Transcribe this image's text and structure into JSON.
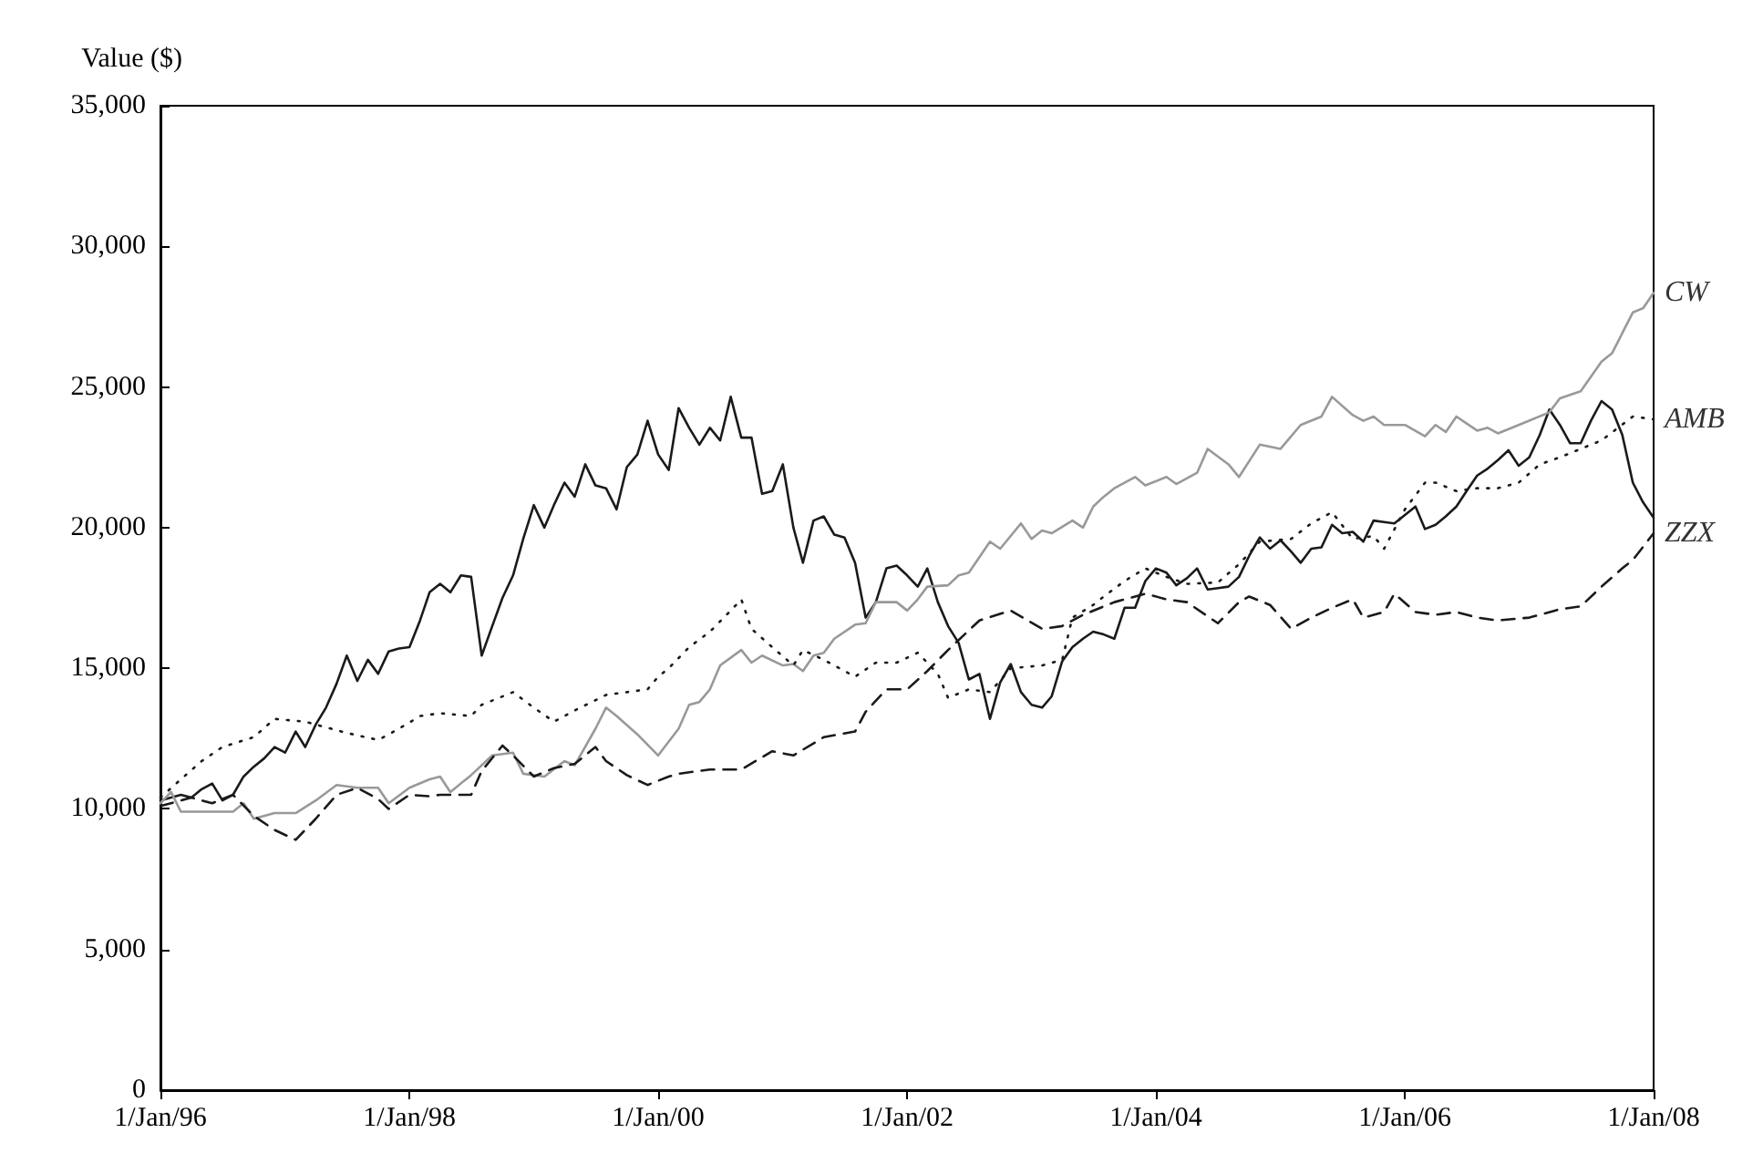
{
  "chart_data": {
    "type": "line",
    "ylabel": "Value ($)",
    "x": [
      "1996-01",
      "1996-02",
      "1996-03",
      "1996-04",
      "1996-05",
      "1996-06",
      "1996-07",
      "1996-08",
      "1996-09",
      "1996-10",
      "1996-11",
      "1996-12",
      "1997-01",
      "1997-02",
      "1997-03",
      "1997-04",
      "1997-05",
      "1997-06",
      "1997-07",
      "1997-08",
      "1997-09",
      "1997-10",
      "1997-11",
      "1997-12",
      "1998-01",
      "1998-02",
      "1998-03",
      "1998-04",
      "1998-05",
      "1998-06",
      "1998-07",
      "1998-08",
      "1998-09",
      "1998-10",
      "1998-11",
      "1998-12",
      "1999-01",
      "1999-02",
      "1999-03",
      "1999-04",
      "1999-05",
      "1999-06",
      "1999-07",
      "1999-08",
      "1999-09",
      "1999-10",
      "1999-11",
      "1999-12",
      "2000-01",
      "2000-02",
      "2000-03",
      "2000-04",
      "2000-05",
      "2000-06",
      "2000-07",
      "2000-08",
      "2000-09",
      "2000-10",
      "2000-11",
      "2000-12",
      "2001-01",
      "2001-02",
      "2001-03",
      "2001-04",
      "2001-05",
      "2001-06",
      "2001-07",
      "2001-08",
      "2001-09",
      "2001-10",
      "2001-11",
      "2001-12",
      "2002-01",
      "2002-02",
      "2002-03",
      "2002-04",
      "2002-05",
      "2002-06",
      "2002-07",
      "2002-08",
      "2002-09",
      "2002-10",
      "2002-11",
      "2002-12",
      "2003-01",
      "2003-02",
      "2003-03",
      "2003-04",
      "2003-05",
      "2003-06",
      "2003-07",
      "2003-08",
      "2003-09",
      "2003-10",
      "2003-11",
      "2003-12",
      "2004-01",
      "2004-02",
      "2004-03",
      "2004-04",
      "2004-05",
      "2004-06",
      "2004-07",
      "2004-08",
      "2004-09",
      "2004-10",
      "2004-11",
      "2004-12",
      "2005-01",
      "2005-02",
      "2005-03",
      "2005-04",
      "2005-05",
      "2005-06",
      "2005-07",
      "2005-08",
      "2005-09",
      "2005-10",
      "2005-11",
      "2005-12",
      "2006-01",
      "2006-02",
      "2006-03",
      "2006-04",
      "2006-05",
      "2006-06",
      "2006-07",
      "2006-08",
      "2006-09",
      "2006-10",
      "2006-11",
      "2006-12",
      "2007-01",
      "2007-02",
      "2007-03",
      "2007-04",
      "2007-05",
      "2007-06",
      "2007-07",
      "2007-08",
      "2007-09",
      "2007-10",
      "2007-11",
      "2007-12",
      "2008-01"
    ],
    "series": [
      {
        "color": "#1a1a1a",
        "line_style": "solid",
        "values": [
          10300,
          10400,
          10500,
          10400,
          10700,
          10900,
          10300,
          10500,
          11150,
          11500,
          11800,
          12200,
          12000,
          12750,
          12200,
          13000,
          13600,
          14450,
          15450,
          14550,
          15300,
          14800,
          15600,
          15700,
          15750,
          16700,
          17700,
          18000,
          17700,
          18300,
          18250,
          15450,
          16500,
          17500,
          18300,
          19600,
          20800,
          20000,
          20800,
          21600,
          21100,
          22250,
          21500,
          21400,
          20650,
          22150,
          22600,
          23800,
          22600,
          22050,
          24250,
          23550,
          22950,
          23550,
          23100,
          24650,
          23200,
          23200,
          21200,
          21300,
          22250,
          20000,
          18750,
          20250,
          20400,
          19750,
          19650,
          18750,
          16800,
          17350,
          18550,
          18650,
          18300,
          17900,
          18550,
          17350,
          16500,
          15900,
          14600,
          14800,
          13200,
          14500,
          15150,
          14150,
          13700,
          13600,
          14000,
          15250,
          15750,
          16050,
          16300,
          16200,
          16050,
          17150,
          17150,
          18100,
          18550,
          18400,
          17950,
          18200,
          18550,
          17800,
          17850,
          17900,
          18250,
          19000,
          19650,
          19250,
          19550,
          19150,
          18750,
          19250,
          19300,
          20100,
          19800,
          19850,
          19500,
          20250,
          20200,
          20150,
          20450,
          20750,
          19950,
          20100,
          20400,
          20750,
          21300,
          21850,
          22100,
          22400,
          22750,
          22200,
          22500,
          23300,
          24200,
          23650,
          23000,
          23000,
          23800,
          24500,
          24200,
          23300,
          21600,
          20900,
          20350
        ]
      },
      {
        "name": "CW",
        "color": "#999999",
        "line_style": "solid",
        "x": [
          "1996-01",
          "1996-02",
          "1996-03",
          "1996-08",
          "1996-09",
          "1996-10",
          "1996-12",
          "1997-02",
          "1997-04",
          "1997-06",
          "1997-08",
          "1997-10",
          "1997-11",
          "1998-01",
          "1998-03",
          "1998-04",
          "1998-05",
          "1998-07",
          "1998-09",
          "1998-11",
          "1998-12",
          "1999-02",
          "1999-04",
          "1999-05",
          "1999-07",
          "1999-08",
          "1999-09",
          "1999-11",
          "2000-01",
          "2000-03",
          "2000-04",
          "2000-05",
          "2000-06",
          "2000-07",
          "2000-09",
          "2000-10",
          "2000-11",
          "2001-01",
          "2001-02",
          "2001-03",
          "2001-04",
          "2001-05",
          "2001-06",
          "2001-08",
          "2001-09",
          "2001-10",
          "2001-12",
          "2002-01",
          "2002-02",
          "2002-03",
          "2002-05",
          "2002-06",
          "2002-07",
          "2002-09",
          "2002-10",
          "2002-12",
          "2003-01",
          "2003-02",
          "2003-03",
          "2003-05",
          "2003-06",
          "2003-07",
          "2003-08",
          "2003-09",
          "2003-11",
          "2003-12",
          "2004-02",
          "2004-03",
          "2004-05",
          "2004-06",
          "2004-08",
          "2004-09",
          "2004-11",
          "2005-01",
          "2005-03",
          "2005-05",
          "2005-06",
          "2005-08",
          "2005-09",
          "2005-10",
          "2005-11",
          "2006-01",
          "2006-03",
          "2006-04",
          "2006-05",
          "2006-06",
          "2006-08",
          "2006-09",
          "2006-10",
          "2006-12",
          "2007-03",
          "2007-04",
          "2007-06",
          "2007-08",
          "2007-09",
          "2007-11",
          "2007-12",
          "2008-01"
        ],
        "values": [
          10200,
          10600,
          9900,
          9900,
          10200,
          9650,
          9850,
          9850,
          10300,
          10850,
          10750,
          10750,
          10200,
          10750,
          11050,
          11150,
          10600,
          11200,
          11900,
          12000,
          11250,
          11150,
          11700,
          11550,
          12850,
          13600,
          13300,
          12650,
          11900,
          12850,
          13700,
          13800,
          14250,
          15100,
          15650,
          15200,
          15450,
          15100,
          15150,
          14900,
          15450,
          15550,
          16050,
          16550,
          16600,
          17350,
          17350,
          17050,
          17450,
          17900,
          17950,
          18300,
          18400,
          19500,
          19250,
          20150,
          19600,
          19900,
          19800,
          20250,
          20000,
          20750,
          21100,
          21400,
          21800,
          21500,
          21800,
          21550,
          21950,
          22800,
          22250,
          21800,
          22950,
          22800,
          23650,
          23950,
          24650,
          24000,
          23800,
          23950,
          23650,
          23650,
          23250,
          23650,
          23400,
          23950,
          23450,
          23550,
          23350,
          23650,
          24100,
          24600,
          24850,
          25900,
          26200,
          27650,
          27800,
          28350
        ]
      },
      {
        "name": "AMB",
        "color": "#1a1a1a",
        "line_style": "dotted",
        "x": [
          "1996-01",
          "1996-03",
          "1996-05",
          "1996-07",
          "1996-10",
          "1996-12",
          "1997-03",
          "1997-05",
          "1997-07",
          "1997-10",
          "1997-12",
          "1998-02",
          "1998-04",
          "1998-07",
          "1998-08",
          "1998-11",
          "1999-01",
          "1999-03",
          "1999-05",
          "1999-08",
          "1999-10",
          "1999-12",
          "2000-01",
          "2000-02",
          "2000-04",
          "2000-06",
          "2000-08",
          "2000-09",
          "2000-10",
          "2000-12",
          "2001-02",
          "2001-03",
          "2001-05",
          "2001-08",
          "2001-10",
          "2001-12",
          "2002-02",
          "2002-04",
          "2002-05",
          "2002-07",
          "2002-09",
          "2002-11",
          "2003-02",
          "2003-04",
          "2003-05",
          "2003-07",
          "2003-08",
          "2003-10",
          "2003-12",
          "2004-02",
          "2004-04",
          "2004-07",
          "2004-09",
          "2004-11",
          "2005-02",
          "2005-04",
          "2005-06",
          "2005-08",
          "2005-10",
          "2005-11",
          "2006-01",
          "2006-03",
          "2006-04",
          "2006-06",
          "2006-08",
          "2006-10",
          "2006-12",
          "2007-02",
          "2007-04",
          "2007-06",
          "2007-08",
          "2007-11",
          "2008-01"
        ],
        "values": [
          10400,
          11050,
          11700,
          12200,
          12550,
          13200,
          13100,
          12900,
          12700,
          12450,
          12850,
          13300,
          13400,
          13300,
          13700,
          14150,
          13600,
          13100,
          13500,
          14050,
          14150,
          14250,
          14700,
          15000,
          15750,
          16300,
          17050,
          17450,
          16400,
          15750,
          15100,
          15650,
          15300,
          14700,
          15200,
          15200,
          15550,
          14800,
          13950,
          14250,
          14150,
          15000,
          15100,
          15300,
          16800,
          17250,
          17550,
          18100,
          18550,
          18250,
          18000,
          18050,
          18700,
          19500,
          19600,
          20150,
          20550,
          19600,
          19700,
          19250,
          20650,
          21600,
          21600,
          21300,
          21400,
          21400,
          21600,
          22250,
          22500,
          22800,
          23100,
          23950,
          23850
        ]
      },
      {
        "name": "ZZX",
        "color": "#1a1a1a",
        "line_style": "dashed",
        "x": [
          "1996-01",
          "1996-04",
          "1996-06",
          "1996-08",
          "1996-10",
          "1996-12",
          "1997-02",
          "1997-04",
          "1997-06",
          "1997-08",
          "1997-10",
          "1997-11",
          "1998-01",
          "1998-03",
          "1998-04",
          "1998-07",
          "1998-08",
          "1998-10",
          "1998-11",
          "1999-01",
          "1999-03",
          "1999-05",
          "1999-07",
          "1999-08",
          "1999-10",
          "1999-12",
          "2000-02",
          "2000-03",
          "2000-06",
          "2000-09",
          "2000-12",
          "2001-02",
          "2001-05",
          "2001-08",
          "2001-09",
          "2001-11",
          "2002-01",
          "2002-03",
          "2002-05",
          "2002-08",
          "2002-11",
          "2003-02",
          "2003-04",
          "2003-06",
          "2003-09",
          "2003-12",
          "2004-02",
          "2004-04",
          "2004-07",
          "2004-09",
          "2004-10",
          "2004-12",
          "2005-02",
          "2005-04",
          "2005-06",
          "2005-08",
          "2005-09",
          "2005-11",
          "2005-12",
          "2006-02",
          "2006-04",
          "2006-06",
          "2006-08",
          "2006-10",
          "2007-01",
          "2007-04",
          "2007-06",
          "2007-08",
          "2007-10",
          "2007-11",
          "2008-01"
        ],
        "values": [
          10100,
          10400,
          10200,
          10500,
          9750,
          9250,
          8900,
          9650,
          10500,
          10750,
          10350,
          10000,
          10500,
          10450,
          10500,
          10500,
          11350,
          12250,
          11900,
          11150,
          11450,
          11600,
          12200,
          11700,
          11200,
          10850,
          11150,
          11250,
          11400,
          11400,
          12050,
          11900,
          12550,
          12750,
          13450,
          14250,
          14250,
          14900,
          15650,
          16700,
          17050,
          16400,
          16500,
          16900,
          17350,
          17650,
          17450,
          17350,
          16600,
          17350,
          17550,
          17250,
          16400,
          16800,
          17150,
          17450,
          16800,
          17000,
          17650,
          17000,
          16900,
          17000,
          16800,
          16700,
          16800,
          17100,
          17200,
          17900,
          18550,
          18850,
          19800
        ]
      }
    ],
    "xlim": [
      "1996-01",
      "2008-01"
    ],
    "xticks": [
      {
        "value": "1996-01",
        "label": "1/Jan/96"
      },
      {
        "value": "1998-01",
        "label": "1/Jan/98"
      },
      {
        "value": "2000-01",
        "label": "1/Jan/00"
      },
      {
        "value": "2002-01",
        "label": "1/Jan/02"
      },
      {
        "value": "2004-01",
        "label": "1/Jan/04"
      },
      {
        "value": "2006-01",
        "label": "1/Jan/06"
      },
      {
        "value": "2008-01",
        "label": "1/Jan/08"
      }
    ],
    "ylim": [
      0,
      35000
    ],
    "yticks": [
      0,
      {
        "value": 5000,
        "label": "5,000"
      },
      {
        "value": 10000,
        "label": "10,000"
      },
      {
        "value": 15000,
        "label": "15,000"
      },
      {
        "value": 20000,
        "label": "20,000"
      },
      {
        "value": 25000,
        "label": "25,000"
      },
      {
        "value": 30000,
        "label": "30,000"
      },
      {
        "value": 35000,
        "label": "35,000"
      }
    ],
    "grid": false,
    "legend": false,
    "marker": "none"
  }
}
